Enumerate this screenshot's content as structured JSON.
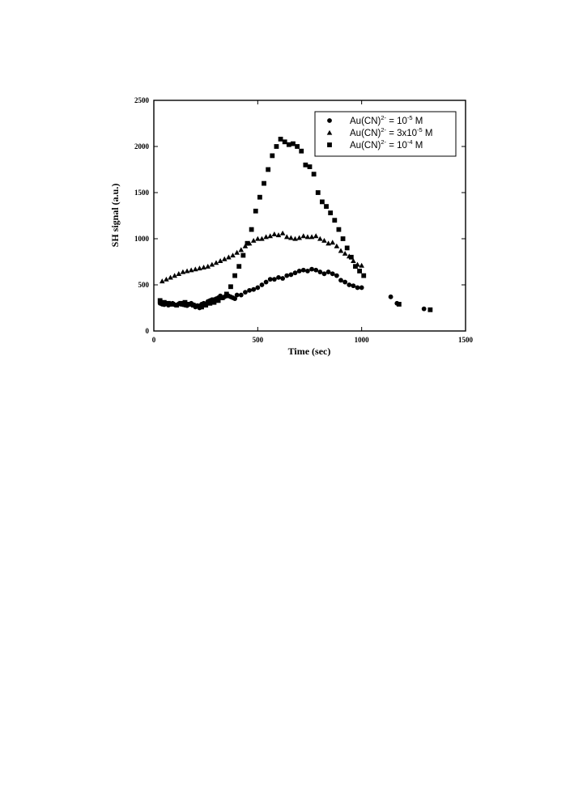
{
  "chart_data": {
    "type": "scatter",
    "title": "",
    "xlabel": "Time (sec)",
    "ylabel": "SH signal (a.u.)",
    "xlim": [
      0,
      1500
    ],
    "ylim": [
      0,
      2500
    ],
    "xticks": [
      "0",
      "500",
      "1000",
      "1500"
    ],
    "yticks": [
      "0",
      "500",
      "1000",
      "1500",
      "2000",
      "2500"
    ],
    "legend_position": "top-right",
    "series": [
      {
        "legend": {
          "base": "Au(CN)",
          "sup1": "2-",
          "mid": " = 10",
          "sup2": "-5",
          "tail": " M"
        },
        "marker": "circle",
        "x": [
          30,
          40,
          50,
          60,
          70,
          80,
          90,
          100,
          110,
          120,
          130,
          140,
          150,
          160,
          170,
          180,
          190,
          200,
          210,
          220,
          230,
          240,
          250,
          260,
          270,
          280,
          290,
          300,
          310,
          320,
          330,
          340,
          350,
          360,
          370,
          380,
          390,
          400,
          420,
          440,
          460,
          480,
          500,
          520,
          540,
          560,
          580,
          600,
          620,
          640,
          660,
          680,
          700,
          720,
          740,
          760,
          780,
          800,
          820,
          840,
          860,
          880,
          900,
          920,
          940,
          960,
          980,
          1000,
          1140,
          1170,
          1300
        ],
        "y": [
          300,
          290,
          285,
          295,
          280,
          290,
          300,
          285,
          280,
          295,
          290,
          285,
          280,
          275,
          290,
          300,
          285,
          260,
          275,
          250,
          290,
          300,
          295,
          320,
          330,
          340,
          340,
          350,
          360,
          380,
          360,
          370,
          380,
          380,
          370,
          360,
          350,
          390,
          390,
          420,
          440,
          450,
          470,
          500,
          530,
          560,
          560,
          580,
          570,
          600,
          610,
          630,
          650,
          660,
          650,
          670,
          660,
          640,
          620,
          640,
          620,
          600,
          550,
          530,
          500,
          490,
          470,
          470,
          370,
          300,
          240
        ]
      },
      {
        "legend": {
          "base": "Au(CN)",
          "sup1": "2-",
          "mid": " = 3x10",
          "sup2": "-5",
          "tail": " M"
        },
        "marker": "triangle",
        "x": [
          40,
          60,
          80,
          100,
          120,
          140,
          160,
          180,
          200,
          220,
          240,
          260,
          280,
          300,
          320,
          340,
          360,
          380,
          400,
          420,
          440,
          460,
          480,
          500,
          520,
          540,
          560,
          580,
          600,
          620,
          640,
          660,
          680,
          700,
          720,
          740,
          760,
          780,
          800,
          820,
          840,
          860,
          880,
          900,
          920,
          940,
          960,
          980,
          1000
        ],
        "y": [
          540,
          560,
          580,
          600,
          620,
          640,
          650,
          660,
          670,
          680,
          690,
          700,
          720,
          740,
          760,
          780,
          800,
          820,
          850,
          880,
          920,
          950,
          980,
          1000,
          1000,
          1020,
          1030,
          1050,
          1040,
          1060,
          1020,
          1010,
          1000,
          1010,
          1030,
          1020,
          1020,
          1030,
          1000,
          980,
          950,
          960,
          920,
          870,
          840,
          810,
          760,
          720,
          710
        ]
      },
      {
        "legend": {
          "base": "Au(CN)",
          "sup1": "2-",
          "mid": " = 10",
          "sup2": "-4",
          "tail": " M"
        },
        "marker": "square",
        "x": [
          30,
          50,
          70,
          90,
          110,
          130,
          150,
          170,
          190,
          210,
          230,
          250,
          270,
          290,
          310,
          330,
          350,
          370,
          390,
          410,
          430,
          450,
          470,
          490,
          510,
          530,
          550,
          570,
          590,
          610,
          630,
          650,
          670,
          690,
          710,
          730,
          750,
          770,
          790,
          810,
          830,
          850,
          870,
          890,
          910,
          930,
          950,
          970,
          990,
          1010,
          1180,
          1330
        ],
        "y": [
          330,
          310,
          300,
          290,
          280,
          300,
          310,
          290,
          280,
          270,
          260,
          280,
          300,
          310,
          330,
          360,
          400,
          480,
          600,
          700,
          820,
          950,
          1100,
          1300,
          1450,
          1600,
          1750,
          1900,
          2000,
          2080,
          2050,
          2020,
          2030,
          2000,
          1950,
          1800,
          1780,
          1700,
          1500,
          1400,
          1350,
          1280,
          1200,
          1100,
          1000,
          900,
          800,
          700,
          650,
          600,
          290,
          230
        ]
      }
    ]
  }
}
